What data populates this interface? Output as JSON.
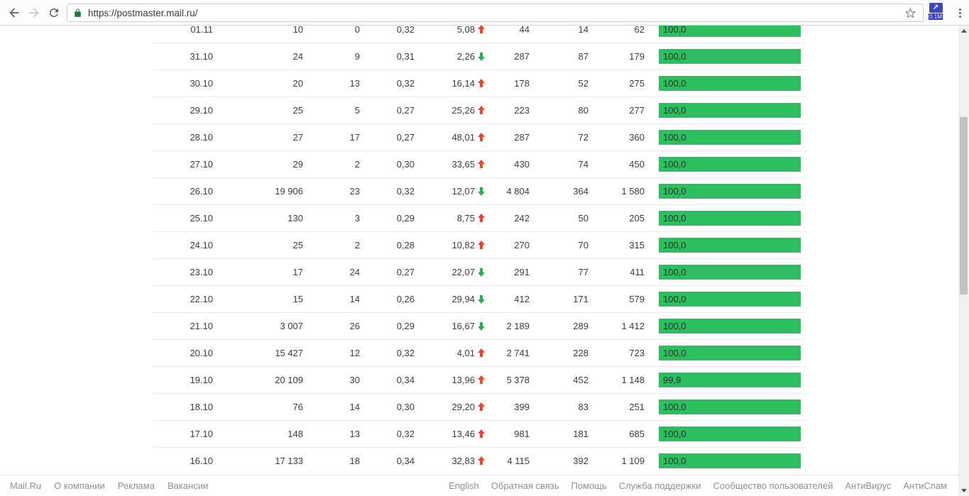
{
  "browser": {
    "url": "https://postmaster.mail.ru/",
    "extension_badge": "0.1M",
    "extension_glyph": "↗"
  },
  "colors": {
    "bar_green": "#2dbe60",
    "arrow_up_red": "#e8482c",
    "arrow_down_green": "#2aad4e",
    "padlock_green": "#188038",
    "extension_blue": "#3b46c9"
  },
  "table": {
    "rows": [
      {
        "date": "01.11",
        "c1": "10",
        "c2": "0",
        "c3": "0,32",
        "delta": "5,08",
        "trend": "up",
        "c4": "44",
        "c5": "14",
        "c6": "62",
        "bar_label": "100,0",
        "bar_pct": 100
      },
      {
        "date": "31.10",
        "c1": "24",
        "c2": "9",
        "c3": "0,31",
        "delta": "2,26",
        "trend": "down",
        "c4": "287",
        "c5": "87",
        "c6": "179",
        "bar_label": "100,0",
        "bar_pct": 100
      },
      {
        "date": "30.10",
        "c1": "20",
        "c2": "13",
        "c3": "0,32",
        "delta": "16,14",
        "trend": "up",
        "c4": "178",
        "c5": "52",
        "c6": "275",
        "bar_label": "100,0",
        "bar_pct": 100
      },
      {
        "date": "29.10",
        "c1": "25",
        "c2": "5",
        "c3": "0,27",
        "delta": "25,26",
        "trend": "up",
        "c4": "223",
        "c5": "80",
        "c6": "277",
        "bar_label": "100,0",
        "bar_pct": 100
      },
      {
        "date": "28.10",
        "c1": "27",
        "c2": "17",
        "c3": "0,27",
        "delta": "48,01",
        "trend": "up",
        "c4": "287",
        "c5": "72",
        "c6": "360",
        "bar_label": "100,0",
        "bar_pct": 100
      },
      {
        "date": "27.10",
        "c1": "29",
        "c2": "2",
        "c3": "0,30",
        "delta": "33,65",
        "trend": "up",
        "c4": "430",
        "c5": "74",
        "c6": "450",
        "bar_label": "100,0",
        "bar_pct": 100
      },
      {
        "date": "26.10",
        "c1": "19 906",
        "c2": "23",
        "c3": "0,32",
        "delta": "12,07",
        "trend": "down",
        "c4": "4 804",
        "c5": "364",
        "c6": "1 580",
        "bar_label": "100,0",
        "bar_pct": 100
      },
      {
        "date": "25.10",
        "c1": "130",
        "c2": "3",
        "c3": "0,29",
        "delta": "8,75",
        "trend": "up",
        "c4": "242",
        "c5": "50",
        "c6": "205",
        "bar_label": "100,0",
        "bar_pct": 100
      },
      {
        "date": "24.10",
        "c1": "25",
        "c2": "2",
        "c3": "0,28",
        "delta": "10,82",
        "trend": "up",
        "c4": "270",
        "c5": "70",
        "c6": "315",
        "bar_label": "100,0",
        "bar_pct": 100
      },
      {
        "date": "23.10",
        "c1": "17",
        "c2": "24",
        "c3": "0,27",
        "delta": "22,07",
        "trend": "down",
        "c4": "291",
        "c5": "77",
        "c6": "411",
        "bar_label": "100,0",
        "bar_pct": 100
      },
      {
        "date": "22.10",
        "c1": "15",
        "c2": "14",
        "c3": "0,26",
        "delta": "29,94",
        "trend": "down",
        "c4": "412",
        "c5": "171",
        "c6": "579",
        "bar_label": "100,0",
        "bar_pct": 100
      },
      {
        "date": "21.10",
        "c1": "3 007",
        "c2": "26",
        "c3": "0,29",
        "delta": "16,67",
        "trend": "down",
        "c4": "2 189",
        "c5": "289",
        "c6": "1 412",
        "bar_label": "100,0",
        "bar_pct": 100
      },
      {
        "date": "20.10",
        "c1": "15 427",
        "c2": "12",
        "c3": "0,32",
        "delta": "4,01",
        "trend": "up",
        "c4": "2 741",
        "c5": "228",
        "c6": "723",
        "bar_label": "100,0",
        "bar_pct": 100
      },
      {
        "date": "19.10",
        "c1": "20 109",
        "c2": "30",
        "c3": "0,34",
        "delta": "13,96",
        "trend": "up",
        "c4": "5 378",
        "c5": "452",
        "c6": "1 148",
        "bar_label": "99,9",
        "bar_pct": 99.9
      },
      {
        "date": "18.10",
        "c1": "76",
        "c2": "14",
        "c3": "0,30",
        "delta": "29,20",
        "trend": "up",
        "c4": "399",
        "c5": "83",
        "c6": "251",
        "bar_label": "100,0",
        "bar_pct": 100
      },
      {
        "date": "17.10",
        "c1": "148",
        "c2": "13",
        "c3": "0,32",
        "delta": "13,46",
        "trend": "up",
        "c4": "981",
        "c5": "181",
        "c6": "685",
        "bar_label": "100,0",
        "bar_pct": 100
      },
      {
        "date": "16.10",
        "c1": "17 133",
        "c2": "18",
        "c3": "0,34",
        "delta": "32,83",
        "trend": "up",
        "c4": "4 115",
        "c5": "392",
        "c6": "1 109",
        "bar_label": "100,0",
        "bar_pct": 100
      }
    ]
  },
  "footer": {
    "left": [
      "Mail.Ru",
      "О компании",
      "Реклама",
      "Вакансии"
    ],
    "right": [
      "English",
      "Обратная связь",
      "Помощь",
      "Служба поддержки",
      "Сообщество пользователей",
      "АнтиВирус",
      "АнтиСпам"
    ]
  }
}
